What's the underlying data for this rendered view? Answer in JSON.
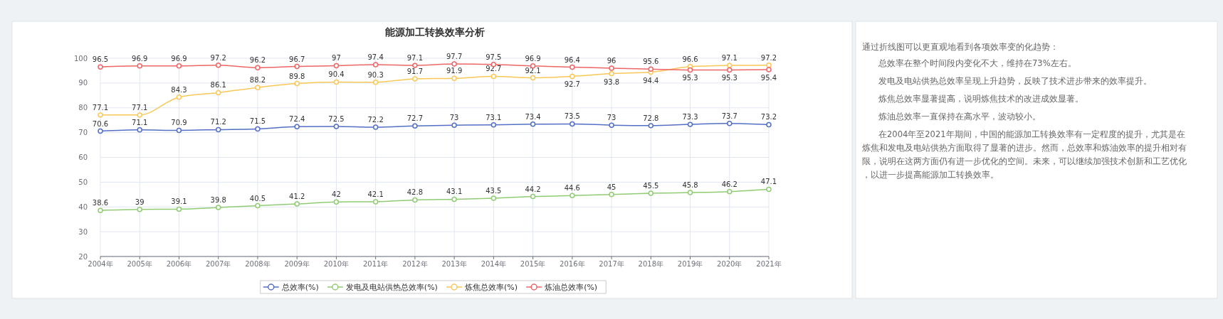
{
  "chart_data": [
    {
      "type": "line",
      "title": "能源加工转换效率分析",
      "categories": [
        "2004年",
        "2005年",
        "2006年",
        "2007年",
        "2008年",
        "2009年",
        "2010年",
        "2011年",
        "2012年",
        "2013年",
        "2014年",
        "2015年",
        "2016年",
        "2017年",
        "2018年",
        "2019年",
        "2020年",
        "2021年"
      ],
      "series": [
        {
          "name": "总效率(%)",
          "color": "#5470c6",
          "values": [
            70.6,
            71.1,
            70.9,
            71.2,
            71.5,
            72.4,
            72.5,
            72.2,
            72.7,
            73,
            73.1,
            73.4,
            73.5,
            73,
            72.8,
            73.3,
            73.7,
            73.2
          ]
        },
        {
          "name": "发电及电站供热总效率(%)",
          "color": "#91cc75",
          "values": [
            38.6,
            39,
            39.1,
            39.8,
            40.5,
            41.2,
            42,
            42.1,
            42.8,
            43.1,
            43.5,
            44.2,
            44.6,
            45,
            45.5,
            45.8,
            46.2,
            47.1
          ]
        },
        {
          "name": "炼焦总效率(%)",
          "color": "#fac858",
          "values": [
            77.1,
            77.1,
            84.3,
            86.1,
            88.2,
            89.8,
            90.4,
            90.3,
            91.7,
            91.9,
            92.7,
            92.1,
            92.7,
            93.8,
            94.4,
            96.6,
            97.1,
            97.2
          ]
        },
        {
          "name": "炼油总效率(%)",
          "color": "#ee6666",
          "values": [
            96.5,
            96.9,
            96.9,
            97.2,
            96.2,
            96.7,
            97,
            97.4,
            97.1,
            97.7,
            97.5,
            96.9,
            96.4,
            96,
            95.6,
            95.3,
            95.3,
            95.4
          ]
        }
      ],
      "ylim": [
        20,
        100
      ],
      "yticks": [
        20,
        30,
        40,
        50,
        60,
        70,
        80,
        90,
        100
      ],
      "grid": true,
      "legend": "bottom",
      "marker": "circle",
      "data_labels": true
    },
    {
      "type": "other",
      "annotations": [
        "通过折线图可以更直观地看到各项效率变的化趋势：",
        "总效率在整个时间段内变化不大，维持在73%左右。",
        "发电及电站供热总效率呈现上升趋势，反映了技术进步带来的效率提升。",
        "炼焦总效率显著提高，说明炼焦技术的改进成效显著。",
        "炼油总效率一直保持在高水平，波动较小。",
        "在2004年至2021年期间，中国的能源加工转换效率有一定程度的提升，尤其是在炼焦和发电及电站供热方面取得了显著的进步。然而，总效率和炼油效率的提升相对有限，说明在这两方面仍有进一步优化的空间。未来，可以继续加强技术创新和工艺优化，以进一步提高能源加工转换效率。"
      ]
    }
  ]
}
